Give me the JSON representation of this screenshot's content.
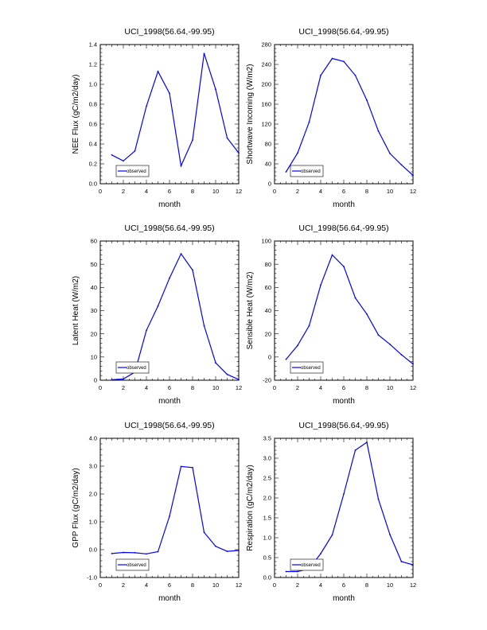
{
  "figure_title": "",
  "colors": {
    "series": "#0000ff",
    "axis": "#000000",
    "background": "#ffffff"
  },
  "chart_data": [
    {
      "type": "line",
      "title": "UCI_1998(56.64,-99.95)",
      "xlabel": "month",
      "ylabel": "NEE Flux (gC/m2/day)",
      "xlim": [
        0,
        12
      ],
      "ylim": [
        0,
        1.4
      ],
      "xticks": [
        0,
        2,
        4,
        6,
        8,
        10,
        12
      ],
      "yticks": [
        0,
        0.2,
        0.4,
        0.6,
        0.8,
        1.0,
        1.2,
        1.4
      ],
      "ytick_labels": [
        "0.0",
        "0.2",
        "0.4",
        "0.6",
        "0.8",
        "1.0",
        "1.2",
        "1.4"
      ],
      "legend": "observed",
      "series": [
        {
          "name": "observed",
          "x": [
            1,
            2,
            3,
            4,
            5,
            6,
            7,
            8,
            9,
            10,
            11,
            12
          ],
          "values": [
            0.29,
            0.23,
            0.33,
            0.78,
            1.13,
            0.91,
            0.18,
            0.44,
            1.31,
            0.95,
            0.46,
            0.31
          ]
        }
      ]
    },
    {
      "type": "line",
      "title": "UCI_1998(56.64,-99.95)",
      "xlabel": "month",
      "ylabel": "Shortwave Incoming (W/m2)",
      "xlim": [
        0,
        12
      ],
      "ylim": [
        0,
        280
      ],
      "xticks": [
        0,
        2,
        4,
        6,
        8,
        10,
        12
      ],
      "yticks": [
        0,
        40,
        80,
        120,
        160,
        200,
        240,
        280
      ],
      "ytick_labels": [
        "0",
        "40",
        "80",
        "120",
        "160",
        "200",
        "240",
        "280"
      ],
      "legend": "observed",
      "series": [
        {
          "name": "observed",
          "x": [
            1,
            2,
            3,
            4,
            5,
            6,
            7,
            8,
            9,
            10,
            11,
            12
          ],
          "values": [
            24,
            62,
            124,
            218,
            252,
            246,
            218,
            168,
            106,
            61,
            38,
            17
          ]
        }
      ]
    },
    {
      "type": "line",
      "title": "UCI_1998(56.64,-99.95)",
      "xlabel": "month",
      "ylabel": "Latent Heat (W/m2)",
      "xlim": [
        0,
        12
      ],
      "ylim": [
        0,
        60
      ],
      "xticks": [
        0,
        2,
        4,
        6,
        8,
        10,
        12
      ],
      "yticks": [
        0,
        10,
        20,
        30,
        40,
        50,
        60
      ],
      "ytick_labels": [
        "0",
        "10",
        "20",
        "30",
        "40",
        "50",
        "60"
      ],
      "legend": "observed",
      "series": [
        {
          "name": "observed",
          "x": [
            1,
            2,
            3,
            4,
            5,
            6,
            7,
            8,
            9,
            10,
            11,
            12
          ],
          "values": [
            0.2,
            0.5,
            3.5,
            21.5,
            32,
            44,
            54.5,
            47.5,
            23.5,
            7.5,
            2.5,
            0.3
          ]
        }
      ]
    },
    {
      "type": "line",
      "title": "UCI_1998(56.64,-99.95)",
      "xlabel": "month",
      "ylabel": "Sensible Heat (W/m2)",
      "xlim": [
        0,
        12
      ],
      "ylim": [
        -20,
        100
      ],
      "xticks": [
        0,
        2,
        4,
        6,
        8,
        10,
        12
      ],
      "yticks": [
        -20,
        0,
        20,
        40,
        60,
        80,
        100
      ],
      "ytick_labels": [
        "-20",
        "0",
        "20",
        "40",
        "60",
        "80",
        "100"
      ],
      "legend": "observed",
      "series": [
        {
          "name": "observed",
          "x": [
            1,
            2,
            3,
            4,
            5,
            6,
            7,
            8,
            9,
            10,
            11,
            12
          ],
          "values": [
            -2,
            10,
            27,
            62,
            88,
            78,
            51,
            37,
            19,
            11,
            2,
            -6
          ]
        }
      ]
    },
    {
      "type": "line",
      "title": "UCI_1998(56.64,-99.95)",
      "xlabel": "month",
      "ylabel": "GPP Flux (gC/m2/day)",
      "xlim": [
        0,
        12
      ],
      "ylim": [
        -1,
        4
      ],
      "xticks": [
        0,
        2,
        4,
        6,
        8,
        10,
        12
      ],
      "yticks": [
        -1,
        0,
        1,
        2,
        3,
        4
      ],
      "ytick_labels": [
        "-1.0",
        "0.0",
        "1.0",
        "2.0",
        "3.0",
        "4.0"
      ],
      "legend": "observed",
      "series": [
        {
          "name": "observed",
          "x": [
            1,
            2,
            3,
            4,
            5,
            6,
            7,
            8,
            9,
            10,
            11,
            12
          ],
          "values": [
            -0.14,
            -0.1,
            -0.11,
            -0.15,
            -0.07,
            1.2,
            2.99,
            2.95,
            0.62,
            0.12,
            -0.06,
            -0.03
          ]
        }
      ]
    },
    {
      "type": "line",
      "title": "UCI_1998(56.64,-99.95)",
      "xlabel": "month",
      "ylabel": "Respiration (gC/m2/day)",
      "xlim": [
        0,
        12
      ],
      "ylim": [
        0,
        3.5
      ],
      "xticks": [
        0,
        2,
        4,
        6,
        8,
        10,
        12
      ],
      "yticks": [
        0,
        0.5,
        1.0,
        1.5,
        2.0,
        2.5,
        3.0,
        3.5
      ],
      "ytick_labels": [
        "0.0",
        "0.5",
        "1.0",
        "1.5",
        "2.0",
        "2.5",
        "3.0",
        "3.5"
      ],
      "legend": "observed",
      "series": [
        {
          "name": "observed",
          "x": [
            1,
            2,
            3,
            4,
            5,
            6,
            7,
            8,
            9,
            10,
            11,
            12
          ],
          "values": [
            0.15,
            0.15,
            0.22,
            0.6,
            1.07,
            2.1,
            3.2,
            3.4,
            1.97,
            1.08,
            0.4,
            0.32
          ]
        }
      ]
    }
  ]
}
